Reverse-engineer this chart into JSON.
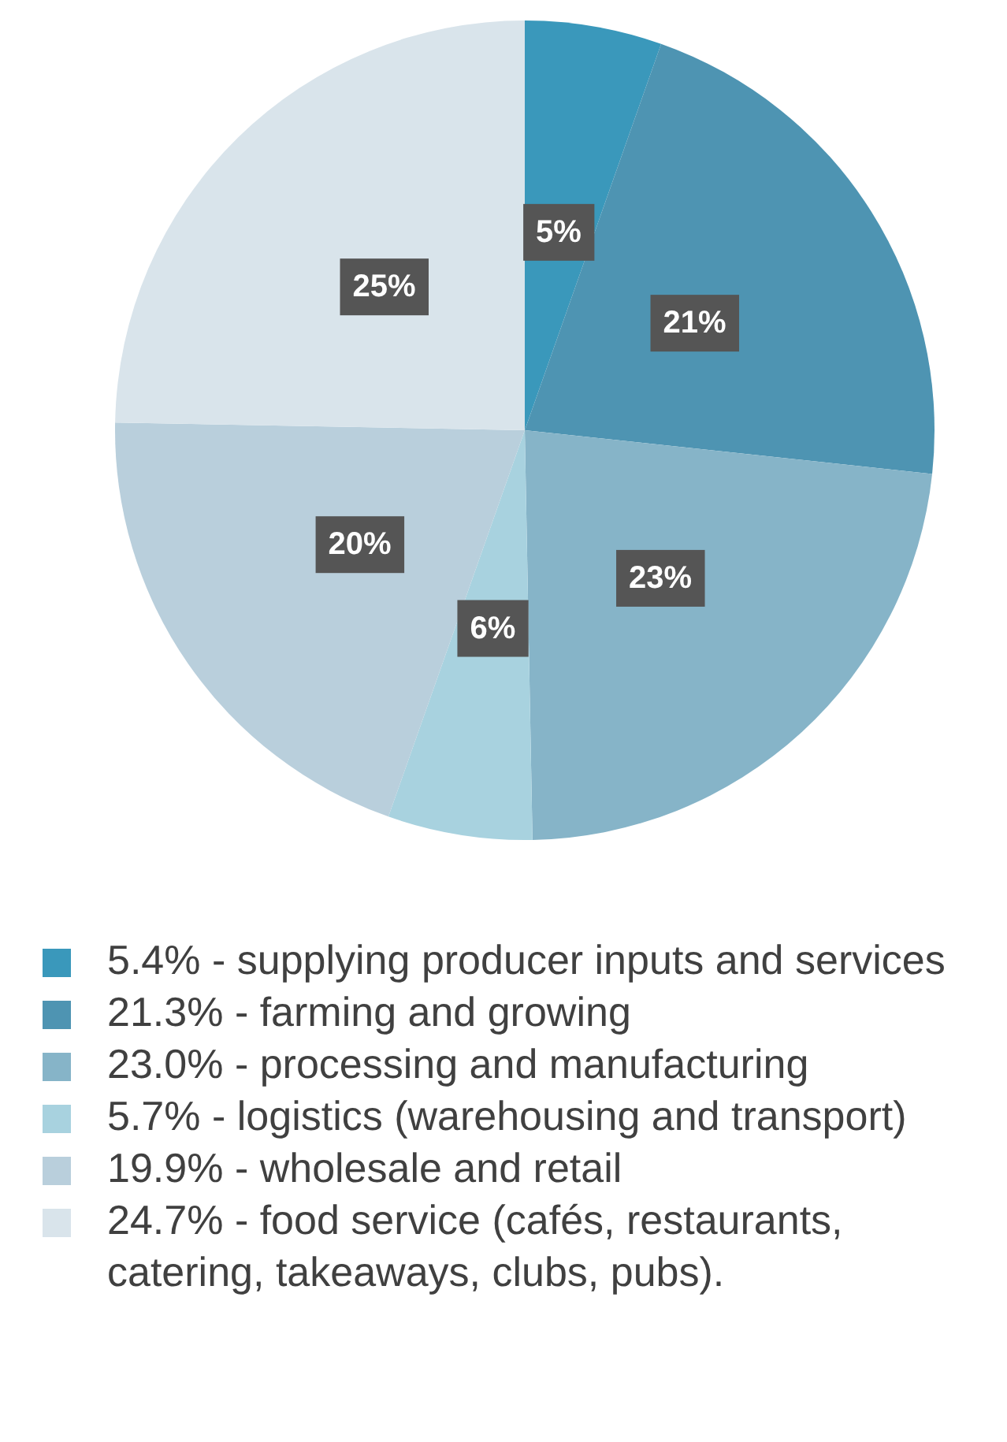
{
  "chart_data": {
    "type": "pie",
    "categories": [
      "5.4% - supplying producer inputs and services",
      "21.3% - farming and growing",
      "23.0% - processing and manufacturing",
      "5.7% - logistics (warehousing and transport)",
      "19.9% - wholesale and retail",
      "24.7% - food service (cafés, restaurants, catering, takeaways, clubs, pubs)."
    ],
    "values": [
      5.4,
      21.3,
      23.0,
      5.7,
      19.9,
      24.7
    ],
    "value_labels": [
      "5%",
      "21%",
      "23%",
      "6%",
      "20%",
      "25%"
    ],
    "colors": [
      "#3a98bb",
      "#4e94b2",
      "#86b4c8",
      "#a8d2df",
      "#b9cfdc",
      "#d9e4eb"
    ],
    "legend": "bottom"
  }
}
